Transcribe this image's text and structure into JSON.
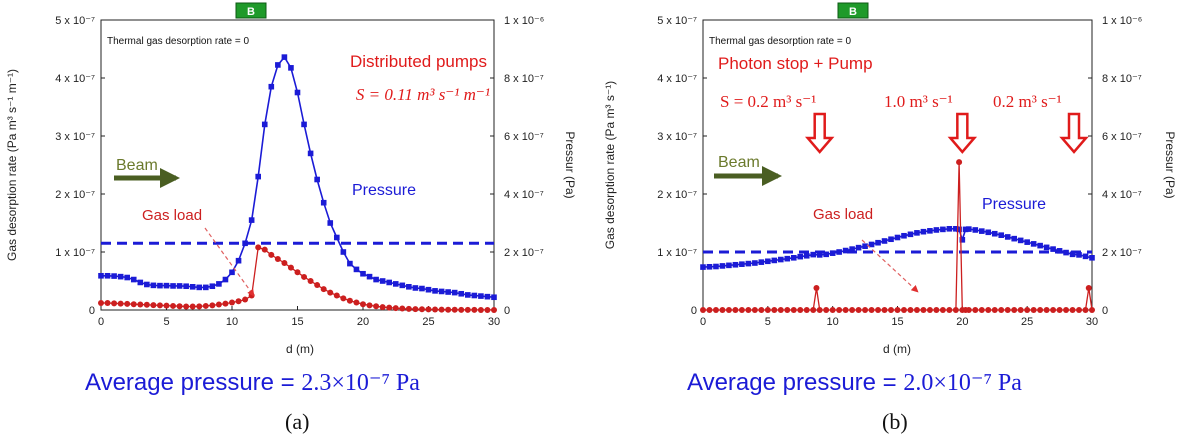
{
  "panels": [
    {
      "id": "a",
      "badge": "B",
      "thermal_note": "Thermal gas desorption rate = 0",
      "title_lines": [
        "Distributed pumps"
      ],
      "speed_annotation": "S =  0.11 m³ s⁻¹ m⁻¹",
      "beam_label": "Beam",
      "pressure_label": "Pressure",
      "gas_load_label": "Gas load",
      "sublabel": "(a)",
      "caption_prefix": "Average pressure = ",
      "caption_value": "2.3×10⁻⁷ Pa"
    },
    {
      "id": "b",
      "badge": "B",
      "thermal_note": "Thermal gas desorption rate = 0",
      "title_lines": [
        "Photon stop + Pump"
      ],
      "speed_annotations": [
        "S = 0.2 m³ s⁻¹",
        "1.0 m³ s⁻¹",
        "0.2 m³ s⁻¹"
      ],
      "beam_label": "Beam",
      "pressure_label": "Pressure",
      "gas_load_label": "Gas load",
      "sublabel": "(b)",
      "caption_prefix": "Average pressure = ",
      "caption_value": "2.0×10⁻⁷ Pa"
    }
  ],
  "colors": {
    "pressure": "#1b1bd6",
    "gas_load": "#cc1f1f",
    "title_red": "#e01b1b",
    "beam": "#5a6b2a",
    "badge": "#1f9a2a"
  },
  "chart_data": [
    {
      "type": "line",
      "xlabel": "d (m)",
      "ylabel_left": "Gas desorption rate (Pa m³ s⁻¹ m⁻¹)",
      "ylabel_right": "Pressur (Pa)",
      "xlim": [
        0,
        30
      ],
      "xticks": [
        "0",
        "5",
        "10",
        "15",
        "20",
        "25",
        "30"
      ],
      "ylim_left": [
        0,
        5e-07
      ],
      "yticks_left": [
        "0",
        "1 x 10⁻⁷",
        "2 x 10⁻⁷",
        "3 x 10⁻⁷",
        "4 x 10⁻⁷",
        "5 x 10⁻⁷"
      ],
      "ylim_right": [
        0,
        1e-06
      ],
      "yticks_right": [
        "0",
        "2 x 10⁻⁷",
        "4 x 10⁻⁷",
        "6 x 10⁻⁷",
        "8 x 10⁻⁷",
        "1 x 10⁻⁶"
      ],
      "average_pressure": 2.3e-07,
      "series": [
        {
          "axis": "right",
          "x": [
            0,
            0.5,
            1,
            1.5,
            2,
            2.5,
            3,
            3.5,
            4,
            4.5,
            5,
            5.5,
            6,
            6.5,
            7,
            7.5,
            8,
            8.5,
            9,
            9.5,
            10,
            10.5,
            11,
            11.5,
            12,
            12.5,
            13,
            13.5,
            14,
            14.5,
            15,
            15.5,
            16,
            16.5,
            17,
            17.5,
            18,
            18.5,
            19,
            19.5,
            20,
            20.5,
            21,
            21.5,
            22,
            22.5,
            23,
            23.5,
            24,
            24.5,
            25,
            25.5,
            26,
            26.5,
            27,
            27.5,
            28,
            28.5,
            29,
            29.5,
            30
          ],
          "y": [
            1.18e-07,
            1.18e-07,
            1.17e-07,
            1.15e-07,
            1.12e-07,
            1.05e-07,
            9.5e-08,
            8.8e-08,
            8.5e-08,
            8.4e-08,
            8.4e-08,
            8.3e-08,
            8.3e-08,
            8.2e-08,
            8e-08,
            7.8e-08,
            7.8e-08,
            8.2e-08,
            9e-08,
            1.05e-07,
            1.3e-07,
            1.7e-07,
            2.3e-07,
            3.1e-07,
            4.6e-07,
            6.4e-07,
            7.7e-07,
            8.45e-07,
            8.72e-07,
            8.35e-07,
            7.5e-07,
            6.4e-07,
            5.4e-07,
            4.5e-07,
            3.7e-07,
            3e-07,
            2.5e-07,
            2e-07,
            1.6e-07,
            1.4e-07,
            1.25e-07,
            1.15e-07,
            1.05e-07,
            1e-07,
            9.5e-08,
            9e-08,
            8.5e-08,
            8e-08,
            7.6e-08,
            7.4e-08,
            7e-08,
            6.6e-08,
            6.4e-08,
            6.2e-08,
            6e-08,
            5.6e-08,
            5.2e-08,
            5e-08,
            4.8e-08,
            4.6e-08,
            4.4e-08
          ]
        },
        {
          "axis": "left",
          "x": [
            0,
            0.5,
            1,
            1.5,
            2,
            2.5,
            3,
            3.5,
            4,
            4.5,
            5,
            5.5,
            6,
            6.5,
            7,
            7.5,
            8,
            8.5,
            9,
            9.5,
            10,
            10.5,
            11,
            11.5,
            12,
            12.5,
            13,
            13.5,
            14,
            14.5,
            15,
            15.5,
            16,
            16.5,
            17,
            17.5,
            18,
            18.5,
            19,
            19.5,
            20,
            20.5,
            21,
            21.5,
            22,
            22.5,
            23,
            23.5,
            24,
            24.5,
            25,
            25.5,
            26,
            26.5,
            27,
            27.5,
            28,
            28.5,
            29,
            29.5,
            30
          ],
          "y": [
            1.2e-08,
            1.2e-08,
            1.15e-08,
            1.1e-08,
            1.05e-08,
            1e-08,
            9.5e-09,
            9e-09,
            8.5e-09,
            8e-09,
            7.5e-09,
            7e-09,
            6.5e-09,
            6e-09,
            6e-09,
            6.2e-09,
            7e-09,
            8e-09,
            9.5e-09,
            1.1e-08,
            1.3e-08,
            1.5e-08,
            1.8e-08,
            2.5e-08,
            1.08e-07,
            1.04e-07,
            9.5e-08,
            8.8e-08,
            8.1e-08,
            7.3e-08,
            6.5e-08,
            5.7e-08,
            5e-08,
            4.3e-08,
            3.6e-08,
            3e-08,
            2.5e-08,
            2e-08,
            1.6e-08,
            1.3e-08,
            1e-08,
            8e-09,
            6.5e-09,
            5e-09,
            4e-09,
            3.2e-09,
            2.5e-09,
            2e-09,
            1.6e-09,
            1.2e-09,
            1e-09,
            8e-10,
            6e-10,
            5e-10,
            4e-10,
            3e-10,
            2e-10,
            2e-10,
            1e-10,
            1e-10,
            1e-10
          ]
        }
      ]
    },
    {
      "type": "line",
      "xlabel": "d (m)",
      "ylabel_left": "Gas desorption rate (Pa m³ s⁻¹)",
      "ylabel_right": "Pressur (Pa)",
      "xlim": [
        0,
        30
      ],
      "xticks": [
        "0",
        "5",
        "10",
        "15",
        "20",
        "25",
        "30"
      ],
      "ylim_left": [
        0,
        5e-07
      ],
      "yticks_left": [
        "0",
        "1 x 10⁻⁷",
        "2 x 10⁻⁷",
        "3 x 10⁻⁷",
        "4 x 10⁻⁷",
        "5 x 10⁻⁷"
      ],
      "ylim_right": [
        0,
        1e-06
      ],
      "yticks_right": [
        "0",
        "2 x 10⁻⁷",
        "4 x 10⁻⁷",
        "6 x 10⁻⁷",
        "8 x 10⁻⁷",
        "1 x 10⁻⁶"
      ],
      "average_pressure": 2e-07,
      "pump_positions": [
        9,
        20,
        30
      ],
      "series": [
        {
          "axis": "right",
          "x": [
            0,
            0.5,
            1,
            1.5,
            2,
            2.5,
            3,
            3.5,
            4,
            4.5,
            5,
            5.5,
            6,
            6.5,
            7,
            7.5,
            8,
            8.5,
            9,
            9.5,
            10,
            10.5,
            11,
            11.5,
            12,
            12.5,
            13,
            13.5,
            14,
            14.5,
            15,
            15.5,
            16,
            16.5,
            17,
            17.5,
            18,
            18.5,
            19,
            19.5,
            19.75,
            20,
            20.25,
            20.5,
            21,
            21.5,
            22,
            22.5,
            23,
            23.5,
            24,
            24.5,
            25,
            25.5,
            26,
            26.5,
            27,
            27.5,
            28,
            28.5,
            29,
            29.5,
            30
          ],
          "y": [
            1.48e-07,
            1.49e-07,
            1.5e-07,
            1.52e-07,
            1.54e-07,
            1.56e-07,
            1.58e-07,
            1.6e-07,
            1.62e-07,
            1.65e-07,
            1.68e-07,
            1.71e-07,
            1.74e-07,
            1.77e-07,
            1.8e-07,
            1.84e-07,
            1.87e-07,
            1.91e-07,
            1.9e-07,
            1.92e-07,
            1.96e-07,
            2e-07,
            2.05e-07,
            2.1e-07,
            2.15e-07,
            2.2e-07,
            2.26e-07,
            2.32e-07,
            2.38e-07,
            2.44e-07,
            2.5e-07,
            2.56e-07,
            2.61e-07,
            2.66e-07,
            2.7e-07,
            2.73e-07,
            2.76e-07,
            2.78e-07,
            2.8e-07,
            2.8e-07,
            2.78e-07,
            2.42e-07,
            2.78e-07,
            2.79e-07,
            2.76e-07,
            2.72e-07,
            2.68e-07,
            2.63e-07,
            2.58e-07,
            2.52e-07,
            2.46e-07,
            2.4e-07,
            2.34e-07,
            2.28e-07,
            2.22e-07,
            2.16e-07,
            2.1e-07,
            2.04e-07,
            1.98e-07,
            1.92e-07,
            1.9e-07,
            1.85e-07,
            1.8e-07
          ]
        },
        {
          "axis": "left",
          "x": [
            0,
            0.5,
            1,
            1.5,
            2,
            2.5,
            3,
            3.5,
            4,
            4.5,
            5,
            5.5,
            6,
            6.5,
            7,
            7.5,
            8,
            8.5,
            8.75,
            9,
            9.5,
            10,
            10.5,
            11,
            11.5,
            12,
            12.5,
            13,
            13.5,
            14,
            14.5,
            15,
            15.5,
            16,
            16.5,
            17,
            17.5,
            18,
            18.5,
            19,
            19.5,
            19.75,
            20,
            20.25,
            20.5,
            21,
            21.5,
            22,
            22.5,
            23,
            23.5,
            24,
            24.5,
            25,
            25.5,
            26,
            26.5,
            27,
            27.5,
            28,
            28.5,
            29,
            29.5,
            29.75,
            30
          ],
          "y": [
            0,
            0,
            0,
            0,
            0,
            0,
            0,
            0,
            0,
            0,
            0,
            0,
            0,
            0,
            0,
            0,
            0,
            0,
            3.8e-08,
            0,
            0,
            0,
            0,
            0,
            0,
            0,
            0,
            0,
            0,
            0,
            0,
            0,
            0,
            0,
            0,
            0,
            0,
            0,
            0,
            0,
            0,
            2.55e-07,
            0,
            0,
            0,
            0,
            0,
            0,
            0,
            0,
            0,
            0,
            0,
            0,
            0,
            0,
            0,
            0,
            0,
            0,
            0,
            0,
            0,
            3.8e-08,
            0
          ]
        }
      ]
    }
  ]
}
